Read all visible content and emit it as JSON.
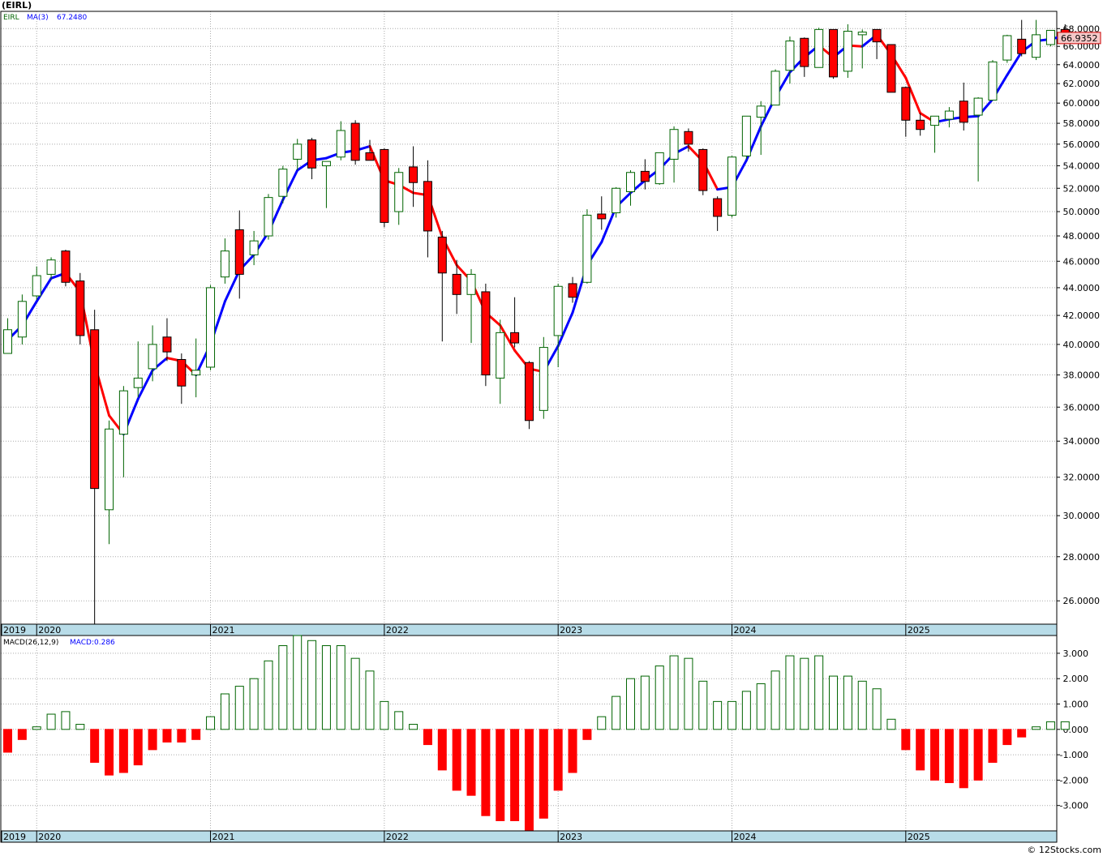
{
  "title": "(EIRL)",
  "price_panel": {
    "symbol": "EIRL",
    "ma_label": "MA(3)",
    "ma_value": "67.2480",
    "last_price": "66.9352"
  },
  "macd_panel": {
    "params_label": "MACD(26,12,9)",
    "value_label": "MACD:0.286"
  },
  "footer": "© 12Stocks.com",
  "colors": {
    "up": "#006400",
    "down": "#ff0000",
    "ma_up": "#0000ff",
    "ma_down": "#ff0000",
    "axis_band": "#b8dce8",
    "grid": "#aaaaaa"
  },
  "chart_data": [
    {
      "type": "candlestick",
      "scale": "log",
      "ylim": [
        25.0,
        70.0
      ],
      "y_ticks": [
        "26.0000",
        "28.0000",
        "30.0000",
        "32.0000",
        "34.0000",
        "36.0000",
        "38.0000",
        "40.0000",
        "42.0000",
        "44.0000",
        "46.0000",
        "48.0000",
        "50.0000",
        "52.0000",
        "54.0000",
        "56.0000",
        "58.0000",
        "60.0000",
        "62.0000",
        "64.0000",
        "66.0000",
        "68.0000"
      ],
      "x_year_labels": [
        "2019",
        "2020",
        "2021",
        "2022",
        "2023",
        "2024",
        "2025"
      ],
      "x_start": "2019-11",
      "candles": [
        {
          "o": 39.4,
          "h": 41.8,
          "l": 39.4,
          "c": 41.0
        },
        {
          "o": 40.5,
          "h": 43.5,
          "l": 40.0,
          "c": 43.0
        },
        {
          "o": 43.4,
          "h": 45.6,
          "l": 43.1,
          "c": 44.9
        },
        {
          "o": 45.0,
          "h": 46.3,
          "l": 44.6,
          "c": 46.1
        },
        {
          "o": 46.8,
          "h": 46.9,
          "l": 44.1,
          "c": 44.4
        },
        {
          "o": 44.5,
          "h": 45.1,
          "l": 40.0,
          "c": 40.6
        },
        {
          "o": 41.0,
          "h": 42.4,
          "l": 25.0,
          "c": 31.4
        },
        {
          "o": 30.3,
          "h": 35.2,
          "l": 28.6,
          "c": 34.7
        },
        {
          "o": 34.4,
          "h": 37.3,
          "l": 32.0,
          "c": 37.0
        },
        {
          "o": 37.2,
          "h": 40.2,
          "l": 36.6,
          "c": 37.8
        },
        {
          "o": 38.4,
          "h": 41.3,
          "l": 37.6,
          "c": 40.0
        },
        {
          "o": 40.5,
          "h": 41.8,
          "l": 38.9,
          "c": 39.5
        },
        {
          "o": 39.0,
          "h": 39.4,
          "l": 36.2,
          "c": 37.3
        },
        {
          "o": 38.0,
          "h": 40.4,
          "l": 36.6,
          "c": 38.3
        },
        {
          "o": 38.5,
          "h": 44.2,
          "l": 38.3,
          "c": 44.0
        },
        {
          "o": 44.8,
          "h": 47.8,
          "l": 44.3,
          "c": 46.8
        },
        {
          "o": 48.5,
          "h": 50.1,
          "l": 43.2,
          "c": 45.0
        },
        {
          "o": 46.5,
          "h": 48.4,
          "l": 45.7,
          "c": 47.6
        },
        {
          "o": 48.0,
          "h": 51.5,
          "l": 47.7,
          "c": 51.2
        },
        {
          "o": 51.3,
          "h": 54.0,
          "l": 50.7,
          "c": 53.7
        },
        {
          "o": 54.6,
          "h": 56.5,
          "l": 53.6,
          "c": 56.0
        },
        {
          "o": 56.4,
          "h": 56.6,
          "l": 52.8,
          "c": 53.8
        },
        {
          "o": 54.0,
          "h": 54.2,
          "l": 50.3,
          "c": 54.4
        },
        {
          "o": 54.8,
          "h": 58.2,
          "l": 54.5,
          "c": 57.3
        },
        {
          "o": 58.0,
          "h": 58.3,
          "l": 54.1,
          "c": 54.5
        },
        {
          "o": 55.2,
          "h": 56.4,
          "l": 54.7,
          "c": 54.5
        },
        {
          "o": 55.5,
          "h": 55.6,
          "l": 48.7,
          "c": 49.1
        },
        {
          "o": 50.0,
          "h": 53.8,
          "l": 48.9,
          "c": 53.4
        },
        {
          "o": 53.9,
          "h": 55.8,
          "l": 50.4,
          "c": 52.5
        },
        {
          "o": 52.6,
          "h": 54.5,
          "l": 46.3,
          "c": 48.4
        },
        {
          "o": 47.9,
          "h": 48.4,
          "l": 40.2,
          "c": 45.1
        },
        {
          "o": 45.0,
          "h": 46.1,
          "l": 42.1,
          "c": 43.5
        },
        {
          "o": 43.5,
          "h": 45.4,
          "l": 40.1,
          "c": 45.0
        },
        {
          "o": 43.7,
          "h": 44.3,
          "l": 37.3,
          "c": 38.0
        },
        {
          "o": 37.8,
          "h": 41.7,
          "l": 36.2,
          "c": 40.8
        },
        {
          "o": 40.8,
          "h": 43.3,
          "l": 39.8,
          "c": 40.1
        },
        {
          "o": 38.8,
          "h": 38.9,
          "l": 34.7,
          "c": 35.2
        },
        {
          "o": 35.8,
          "h": 40.5,
          "l": 35.3,
          "c": 39.8
        },
        {
          "o": 40.6,
          "h": 44.3,
          "l": 38.5,
          "c": 44.1
        },
        {
          "o": 44.3,
          "h": 44.8,
          "l": 42.9,
          "c": 43.3
        },
        {
          "o": 44.4,
          "h": 50.2,
          "l": 44.3,
          "c": 49.7
        },
        {
          "o": 49.8,
          "h": 51.3,
          "l": 48.5,
          "c": 49.4
        },
        {
          "o": 49.9,
          "h": 52.1,
          "l": 49.5,
          "c": 52.0
        },
        {
          "o": 51.7,
          "h": 53.6,
          "l": 50.5,
          "c": 53.4
        },
        {
          "o": 53.5,
          "h": 54.6,
          "l": 51.9,
          "c": 52.6
        },
        {
          "o": 52.4,
          "h": 55.0,
          "l": 52.3,
          "c": 55.2
        },
        {
          "o": 54.6,
          "h": 57.7,
          "l": 52.5,
          "c": 57.4
        },
        {
          "o": 57.2,
          "h": 57.5,
          "l": 55.3,
          "c": 56.0
        },
        {
          "o": 55.5,
          "h": 55.6,
          "l": 51.4,
          "c": 51.8
        },
        {
          "o": 51.1,
          "h": 51.3,
          "l": 48.4,
          "c": 49.6
        },
        {
          "o": 49.7,
          "h": 54.9,
          "l": 49.5,
          "c": 54.8
        },
        {
          "o": 54.9,
          "h": 58.7,
          "l": 54.6,
          "c": 58.7
        },
        {
          "o": 58.6,
          "h": 60.2,
          "l": 55.0,
          "c": 59.7
        },
        {
          "o": 59.8,
          "h": 63.5,
          "l": 59.8,
          "c": 63.3
        },
        {
          "o": 63.4,
          "h": 67.1,
          "l": 62.0,
          "c": 66.6
        },
        {
          "o": 66.9,
          "h": 67.0,
          "l": 62.7,
          "c": 63.8
        },
        {
          "o": 63.7,
          "h": 68.1,
          "l": 63.7,
          "c": 67.9
        },
        {
          "o": 67.9,
          "h": 67.9,
          "l": 62.5,
          "c": 62.7
        },
        {
          "o": 63.3,
          "h": 68.5,
          "l": 62.6,
          "c": 67.7
        },
        {
          "o": 67.3,
          "h": 67.9,
          "l": 63.6,
          "c": 67.6
        },
        {
          "o": 67.9,
          "h": 67.9,
          "l": 64.6,
          "c": 66.5
        },
        {
          "o": 66.2,
          "h": 66.2,
          "l": 61.2,
          "c": 61.1
        },
        {
          "o": 61.6,
          "h": 61.7,
          "l": 56.7,
          "c": 58.3
        },
        {
          "o": 58.3,
          "h": 59.0,
          "l": 56.8,
          "c": 57.4
        },
        {
          "o": 57.8,
          "h": 58.6,
          "l": 55.2,
          "c": 58.7
        },
        {
          "o": 58.4,
          "h": 59.6,
          "l": 57.6,
          "c": 59.2
        },
        {
          "o": 60.2,
          "h": 62.1,
          "l": 57.3,
          "c": 58.1
        },
        {
          "o": 58.8,
          "h": 60.6,
          "l": 52.6,
          "c": 60.5
        },
        {
          "o": 60.3,
          "h": 64.5,
          "l": 60.3,
          "c": 64.3
        },
        {
          "o": 64.5,
          "h": 67.3,
          "l": 64.2,
          "c": 67.2
        },
        {
          "o": 66.8,
          "h": 69.0,
          "l": 64.9,
          "c": 65.2
        },
        {
          "o": 64.8,
          "h": 69.0,
          "l": 64.5,
          "c": 67.3
        },
        {
          "o": 66.2,
          "h": 67.8,
          "l": 66.0,
          "c": 67.8
        },
        {
          "o": 67.9,
          "h": 68.5,
          "l": 66.3,
          "c": 66.9
        }
      ],
      "ma3": [
        40.3,
        41.3,
        43.0,
        44.7,
        45.1,
        43.7,
        38.7,
        35.5,
        34.4,
        36.5,
        38.3,
        39.1,
        38.9,
        38.0,
        40.0,
        43.0,
        45.3,
        46.5,
        48.3,
        51.0,
        53.6,
        54.5,
        54.7,
        55.2,
        55.4,
        55.8,
        52.7,
        52.3,
        51.6,
        51.4,
        47.9,
        45.7,
        44.5,
        42.2,
        41.3,
        39.6,
        38.4,
        38.2,
        39.9,
        42.2,
        45.7,
        47.5,
        50.4,
        51.6,
        52.7,
        53.7,
        55.1,
        55.8,
        54.4,
        51.9,
        52.1,
        54.5,
        57.7,
        60.6,
        63.2,
        64.8,
        66.1,
        64.8,
        66.1,
        66.0,
        67.3,
        65.1,
        62.6,
        59.0,
        58.1,
        58.4,
        58.6,
        58.7,
        60.4,
        62.9,
        65.4,
        66.6,
        66.8,
        67.2
      ]
    },
    {
      "type": "bar",
      "name": "MACD(26,12,9)",
      "ylim": [
        -4.0,
        3.7
      ],
      "y_ticks": [
        "3.000",
        "2.000",
        "1.000",
        "0.000",
        "-1.000",
        "-2.000",
        "-3.000"
      ],
      "x_year_labels": [
        "2019",
        "2020",
        "2021",
        "2022",
        "2023",
        "2024",
        "2025"
      ],
      "values": [
        -0.9,
        -0.4,
        0.1,
        0.6,
        0.7,
        0.2,
        -1.3,
        -1.8,
        -1.7,
        -1.4,
        -0.8,
        -0.5,
        -0.5,
        -0.4,
        0.5,
        1.4,
        1.7,
        2.0,
        2.7,
        3.3,
        3.7,
        3.5,
        3.3,
        3.3,
        2.8,
        2.3,
        1.1,
        0.7,
        0.2,
        -0.6,
        -1.6,
        -2.4,
        -2.6,
        -3.4,
        -3.6,
        -3.6,
        -4.0,
        -3.5,
        -2.4,
        -1.7,
        -0.4,
        0.5,
        1.3,
        2.0,
        2.1,
        2.5,
        2.9,
        2.8,
        1.9,
        1.1,
        1.1,
        1.5,
        1.8,
        2.3,
        2.9,
        2.8,
        2.9,
        2.1,
        2.1,
        1.9,
        1.6,
        0.4,
        -0.8,
        -1.6,
        -2.0,
        -2.1,
        -2.3,
        -2.0,
        -1.3,
        -0.6,
        -0.3,
        0.1,
        0.3,
        0.3
      ]
    }
  ]
}
